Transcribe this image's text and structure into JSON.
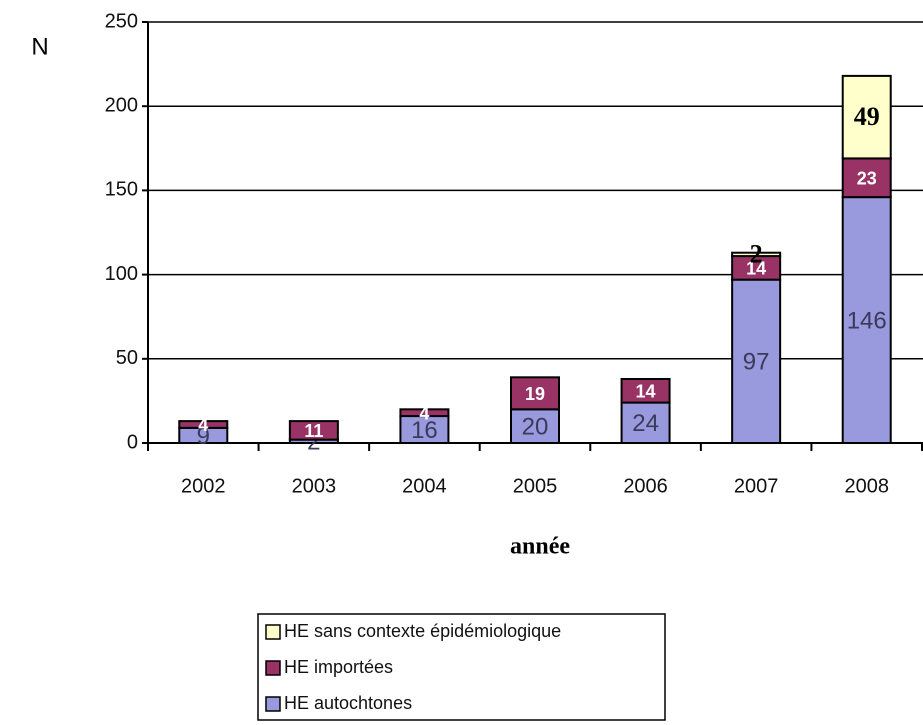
{
  "chart_data": {
    "type": "stacked_bar",
    "y_label": "N",
    "x_label": "année",
    "categories": [
      "2002",
      "2003",
      "2004",
      "2005",
      "2006",
      "2007",
      "2008"
    ],
    "series": [
      {
        "name": "HE autochtones",
        "color": "#9999dd",
        "label_color": "#3a3a5a",
        "values": [
          9,
          2,
          16,
          20,
          24,
          97,
          146
        ]
      },
      {
        "name": "HE importées",
        "color": "#993366",
        "label_color": "#ffffff",
        "values": [
          4,
          11,
          4,
          19,
          14,
          14,
          23
        ]
      },
      {
        "name": "HE sans contexte épidémiologique",
        "color": "#ffffcc",
        "label_color": "#000000",
        "values": [
          null,
          null,
          null,
          null,
          null,
          2,
          49
        ]
      }
    ],
    "ylim": [
      0,
      250
    ],
    "yticks": [
      0,
      50,
      100,
      150,
      200,
      250
    ],
    "grid": true
  }
}
